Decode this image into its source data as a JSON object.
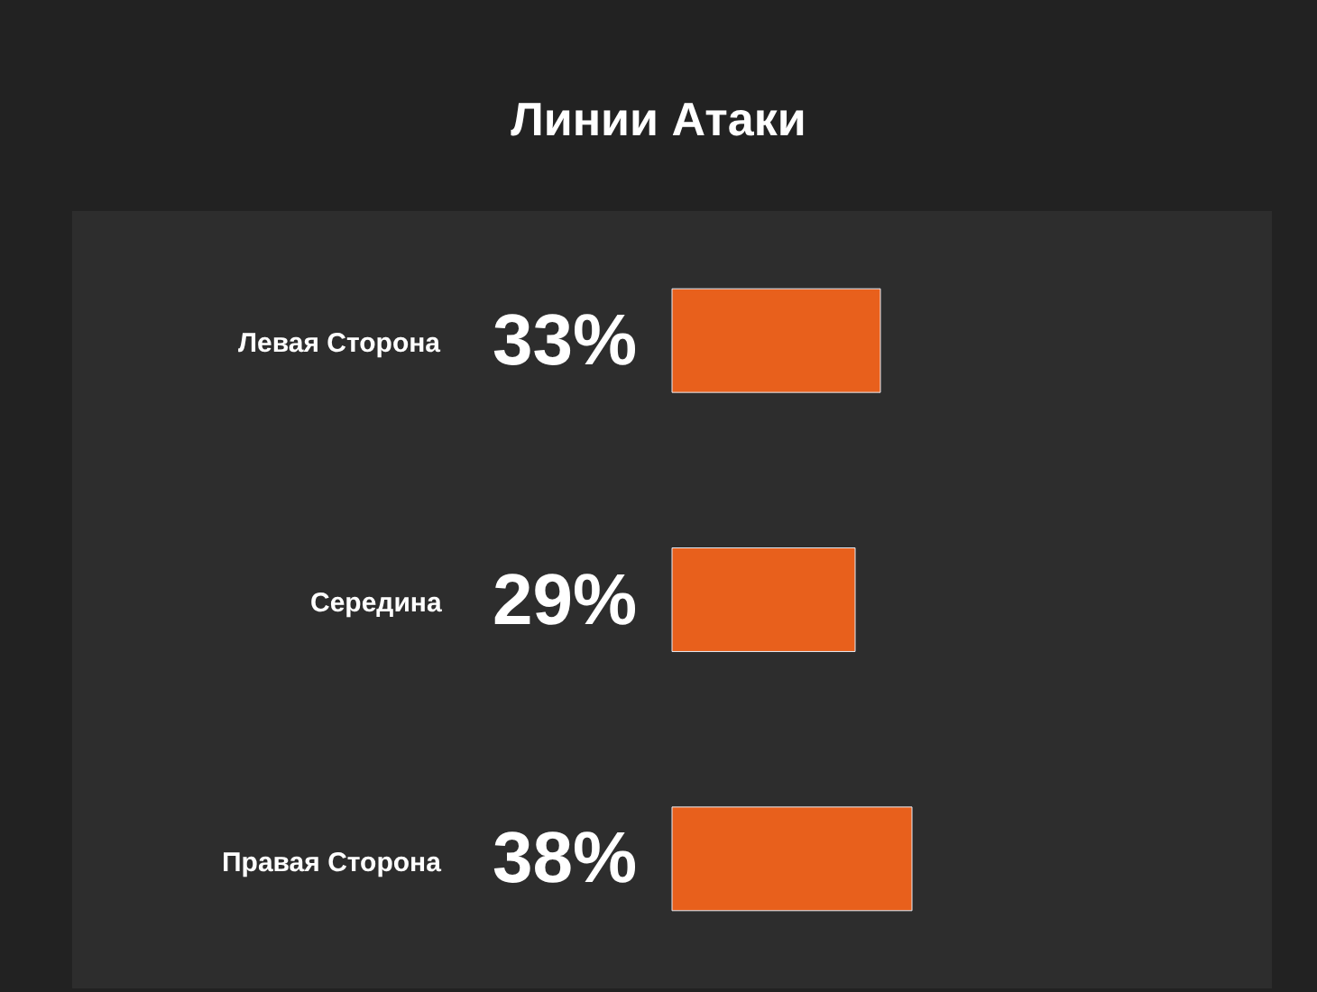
{
  "chart_data": {
    "type": "bar",
    "orientation": "horizontal",
    "title": "Линии Атаки",
    "categories": [
      "Левая Сторона",
      "Середина",
      "Правая Сторона"
    ],
    "values": [
      33,
      29,
      38
    ],
    "value_labels": [
      "33%",
      "29%",
      "38%"
    ],
    "color": "#e8601c"
  }
}
